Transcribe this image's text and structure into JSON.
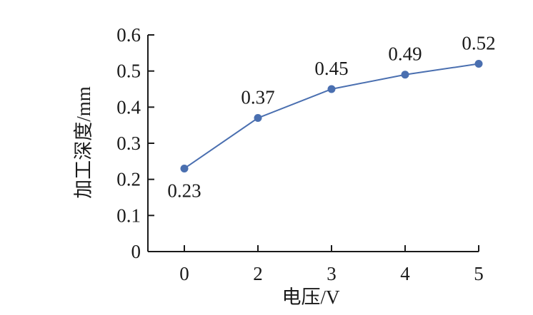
{
  "chart_data": {
    "type": "line",
    "categories": [
      "0",
      "2",
      "3",
      "4",
      "5"
    ],
    "series": [
      {
        "values": [
          0.23,
          0.37,
          0.45,
          0.49,
          0.52
        ]
      }
    ],
    "data_labels": [
      "0.23",
      "0.37",
      "0.45",
      "0.49",
      "0.52"
    ],
    "xlabel": "电压/V",
    "ylabel": "加工深度/mm",
    "ylim": [
      0,
      0.6
    ],
    "yticks": [
      "0",
      "0.1",
      "0.2",
      "0.3",
      "0.4",
      "0.5",
      "0.6"
    ],
    "grid": false,
    "legend": "none",
    "colors": {
      "series": "#4a6fb0",
      "axis": "#1a1a1a"
    }
  }
}
